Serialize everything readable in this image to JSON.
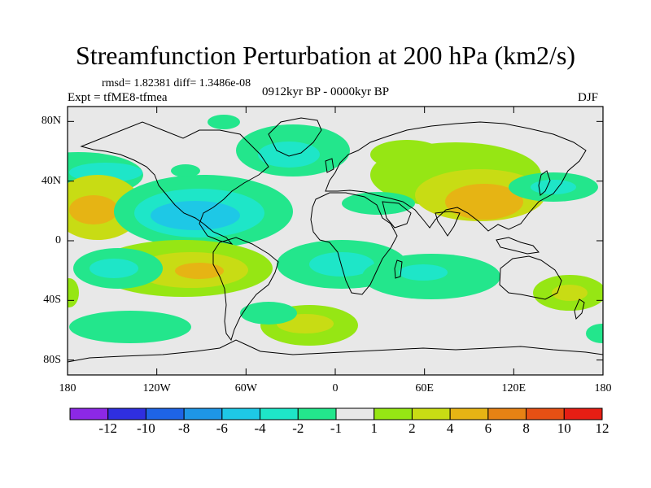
{
  "title": "Streamfunction Perturbation at 200 hPa (km2/s)",
  "stats": "rmsd= 1.82381 diff= 1.3486e-08",
  "experiment": "Expt = tfME8-tfmea",
  "period": "0912kyr BP - 0000kyr BP",
  "season": "DJF",
  "map": {
    "lon_range": [
      -180,
      180
    ],
    "lat_range": [
      -90,
      90
    ],
    "lat_ticks": [
      {
        "label": "80N",
        "value": 80
      },
      {
        "label": "40N",
        "value": 40
      },
      {
        "label": "0",
        "value": 0
      },
      {
        "label": "40S",
        "value": -40
      },
      {
        "label": "80S",
        "value": -80
      }
    ],
    "lon_ticks": [
      {
        "label": "180",
        "value": -180
      },
      {
        "label": "120W",
        "value": -120
      },
      {
        "label": "60W",
        "value": -60
      },
      {
        "label": "0",
        "value": 0
      },
      {
        "label": "60E",
        "value": 60
      },
      {
        "label": "120E",
        "value": 120
      },
      {
        "label": "180",
        "value": 180
      }
    ],
    "background_color": "#e8e8e8"
  },
  "colorbar": {
    "labels": [
      "-12",
      "-10",
      "-8",
      "-6",
      "-4",
      "-2",
      "-1",
      "1",
      "2",
      "4",
      "6",
      "8",
      "10",
      "12"
    ],
    "colors": [
      "#8c28e6",
      "#2f2fe0",
      "#1e64e6",
      "#1e96e6",
      "#1ec8e6",
      "#1ee6c8",
      "#23e68c",
      "#e8e8e8",
      "#96e614",
      "#c8dc14",
      "#e6b414",
      "#e68214",
      "#e65014",
      "#e61e14"
    ]
  },
  "chart_data": {
    "type": "heatmap",
    "title": "Streamfunction Perturbation at 200 hPa (km2/s)",
    "subtitle": "0912kyr BP - 0000kyr BP",
    "season": "DJF",
    "rmsd": 1.82381,
    "diff": 1.3486e-08,
    "units": "km2/s",
    "contour_levels": [
      -12,
      -10,
      -8,
      -6,
      -4,
      -2,
      -1,
      1,
      2,
      4,
      6,
      8,
      10,
      12
    ],
    "features": [
      {
        "lon": -165,
        "lat": 22,
        "value": 5
      },
      {
        "lon": -95,
        "lat": 22,
        "value": -5
      },
      {
        "lon": -160,
        "lat": 40,
        "value": -3
      },
      {
        "lon": -60,
        "lat": 55,
        "value": -2
      },
      {
        "lon": -60,
        "lat": 75,
        "value": -1.5
      },
      {
        "lon": -95,
        "lat": -22,
        "value": 6
      },
      {
        "lon": -140,
        "lat": -25,
        "value": -2
      },
      {
        "lon": -30,
        "lat": -55,
        "value": 2
      },
      {
        "lon": -120,
        "lat": -55,
        "value": -1.5
      },
      {
        "lon": 0,
        "lat": -15,
        "value": -2
      },
      {
        "lon": 60,
        "lat": -25,
        "value": -1.5
      },
      {
        "lon": 75,
        "lat": 20,
        "value": 4
      },
      {
        "lon": 95,
        "lat": 30,
        "value": 5
      },
      {
        "lon": 60,
        "lat": 50,
        "value": 2
      },
      {
        "lon": 10,
        "lat": 30,
        "value": -2
      },
      {
        "lon": 135,
        "lat": 35,
        "value": -2
      },
      {
        "lon": 165,
        "lat": -30,
        "value": 2
      }
    ]
  }
}
